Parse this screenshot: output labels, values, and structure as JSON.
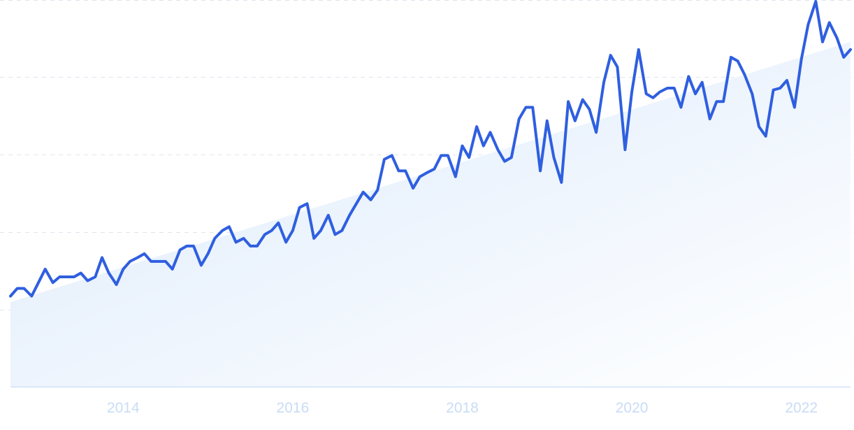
{
  "chart_data": {
    "type": "line",
    "title": "",
    "xlabel": "",
    "ylabel": "",
    "x_tick_labels": [
      "2014",
      "2016",
      "2018",
      "2020",
      "2022"
    ],
    "x_ticks": [
      2014,
      2016,
      2018,
      2020,
      2022
    ],
    "xlim": [
      2012.67,
      2022.58
    ],
    "ylim": [
      0,
      100
    ],
    "grid": true,
    "trend_area": true,
    "colors": {
      "line": "#2f5fe0",
      "area_top": "#dceafb",
      "area_bottom": "#ffffff",
      "grid": "#dfe5ee",
      "tick_label": "#c9dcf6"
    },
    "series": [
      {
        "x": [
          2012.67,
          2012.75,
          2012.83,
          2012.92,
          2013.0,
          2013.08,
          2013.17,
          2013.25,
          2013.33,
          2013.42,
          2013.5,
          2013.58,
          2013.67,
          2013.75,
          2013.83,
          2013.92,
          2014.0,
          2014.08,
          2014.17,
          2014.25,
          2014.33,
          2014.42,
          2014.5,
          2014.58,
          2014.67,
          2014.75,
          2014.83,
          2014.92,
          2015.0,
          2015.08,
          2015.17,
          2015.25,
          2015.33,
          2015.42,
          2015.5,
          2015.58,
          2015.67,
          2015.75,
          2015.83,
          2015.92,
          2016.0,
          2016.08,
          2016.17,
          2016.25,
          2016.33,
          2016.42,
          2016.5,
          2016.58,
          2016.67,
          2016.75,
          2016.83,
          2016.92,
          2017.0,
          2017.08,
          2017.17,
          2017.25,
          2017.33,
          2017.42,
          2017.5,
          2017.58,
          2017.67,
          2017.75,
          2017.83,
          2017.92,
          2018.0,
          2018.08,
          2018.17,
          2018.25,
          2018.33,
          2018.42,
          2018.5,
          2018.58,
          2018.67,
          2018.75,
          2018.83,
          2018.92,
          2019.0,
          2019.08,
          2019.17,
          2019.25,
          2019.33,
          2019.42,
          2019.5,
          2019.58,
          2019.67,
          2019.75,
          2019.83,
          2019.92,
          2020.0,
          2020.08,
          2020.17,
          2020.25,
          2020.33,
          2020.42,
          2020.5,
          2020.58,
          2020.67,
          2020.75,
          2020.83,
          2020.92,
          2021.0,
          2021.08,
          2021.17,
          2021.25,
          2021.33,
          2021.42,
          2021.5,
          2021.58,
          2021.67,
          2021.75,
          2021.83,
          2021.92,
          2022.0,
          2022.08,
          2022.17,
          2022.25,
          2022.33,
          2022.42,
          2022.5,
          2022.58
        ],
        "values": [
          23.5,
          25.5,
          25.5,
          23.5,
          27,
          30.5,
          27,
          28.5,
          28.5,
          28.5,
          29.5,
          27.5,
          28.5,
          33.5,
          29.5,
          26.5,
          30.5,
          32.5,
          33.5,
          34.5,
          32.5,
          32.5,
          32.5,
          30.5,
          35.5,
          36.5,
          36.5,
          31.5,
          34.5,
          38.5,
          40.5,
          41.5,
          37.5,
          38.5,
          36.5,
          36.5,
          39.5,
          40.5,
          42.5,
          37.5,
          40.5,
          46.5,
          47.5,
          38.5,
          40.5,
          44.5,
          39.5,
          40.5,
          44.5,
          47.5,
          50.5,
          48.5,
          51,
          59,
          60,
          56,
          56,
          51.5,
          54.5,
          55.5,
          56.5,
          60,
          60,
          54.5,
          62.5,
          59.5,
          67.5,
          62.5,
          66,
          61.5,
          58.5,
          59.5,
          69.5,
          72.5,
          72.5,
          56,
          69,
          59.5,
          53,
          74,
          69,
          74.5,
          72,
          66,
          79,
          86,
          83,
          61.5,
          76.5,
          87.5,
          76,
          75,
          76.5,
          77.5,
          77.5,
          72.5,
          80.5,
          76,
          79,
          69.5,
          74,
          74,
          85.5,
          84.5,
          81,
          76,
          67.5,
          65,
          77,
          77.5,
          79.5,
          72.5,
          85,
          94,
          100,
          89.5,
          94.5,
          90.5,
          85.5,
          87.5
        ]
      }
    ]
  }
}
